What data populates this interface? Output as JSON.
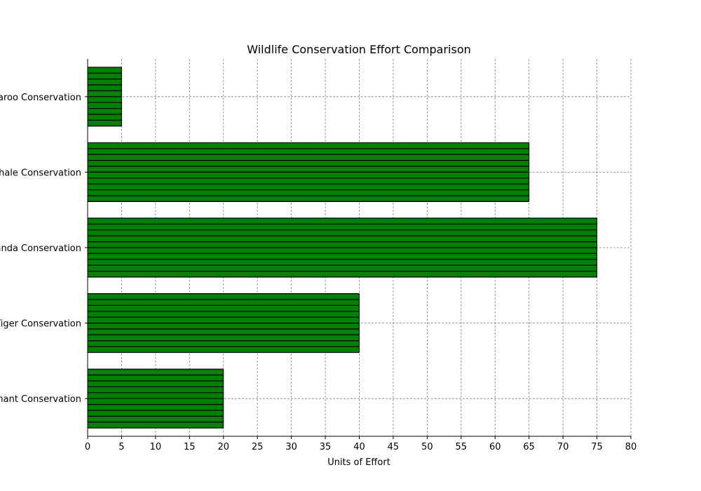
{
  "chart_data": {
    "type": "bar",
    "orientation": "horizontal",
    "title": "Wildlife Conservation Effort Comparison",
    "xlabel": "Units of Effort",
    "ylabel": "",
    "categories": [
      "Elephant Conservation",
      "Tiger Conservation",
      "Panda Conservation",
      "Whale Conservation",
      "Kangaroo Conservation"
    ],
    "values": [
      20,
      40,
      75,
      65,
      5
    ],
    "xlim": [
      0,
      80
    ],
    "xticks": [
      "0",
      "5",
      "10",
      "15",
      "20",
      "25",
      "30",
      "35",
      "40",
      "45",
      "50",
      "55",
      "60",
      "65",
      "70",
      "75",
      "80"
    ],
    "grid": true,
    "bar_color": "#008000",
    "hatch_color": "#000000",
    "hatch": "horizontal-lines",
    "grid_color": "#808080"
  }
}
